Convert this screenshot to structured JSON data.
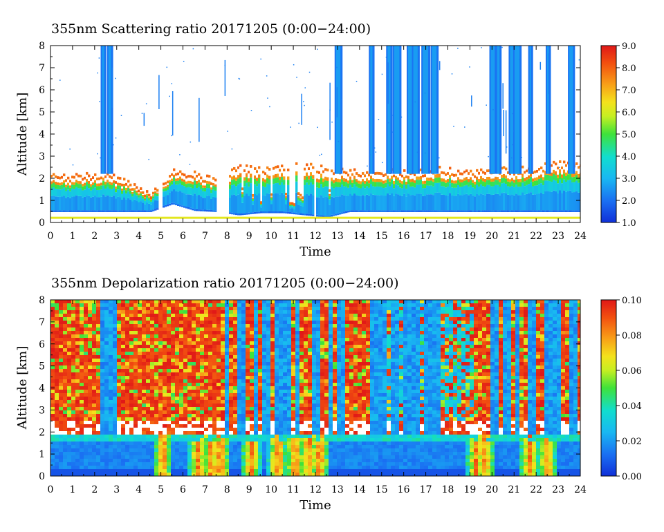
{
  "chart_data": [
    {
      "type": "heatmap",
      "title": "355nm Scattering ratio  20171205 (0:00−24:00)",
      "xlabel": "Time",
      "ylabel": "Altitude [km]",
      "xlim": [
        0,
        24
      ],
      "ylim": [
        0,
        8
      ],
      "x_ticks": [
        "0",
        "1",
        "2",
        "3",
        "4",
        "5",
        "6",
        "7",
        "8",
        "9",
        "10",
        "11",
        "12",
        "13",
        "14",
        "15",
        "16",
        "17",
        "18",
        "19",
        "20",
        "21",
        "22",
        "23",
        "24"
      ],
      "y_ticks": [
        "0",
        "1",
        "2",
        "3",
        "4",
        "5",
        "6",
        "7",
        "8"
      ],
      "colorbar": {
        "range": [
          1.0,
          9.0
        ],
        "ticks": [
          "1.0",
          "2.0",
          "3.0",
          "4.0",
          "5.0",
          "6.0",
          "7.0",
          "8.0",
          "9.0"
        ]
      },
      "features": {
        "cloud_top_km_hourly": [
          2.1,
          2.1,
          2.2,
          1.8,
          1.3,
          2.3,
          2.2,
          1.9,
          2.5,
          2.4,
          2.6,
          2.6,
          2.4,
          2.3,
          2.3,
          2.3,
          2.3,
          2.4,
          2.3,
          2.3,
          2.4,
          2.4,
          2.6,
          2.7
        ],
        "cloud_base_km_hourly": [
          0.55,
          0.55,
          0.55,
          0.55,
          0.55,
          0.9,
          0.6,
          0.55,
          0.4,
          0.5,
          0.5,
          0.4,
          0.3,
          0.55,
          0.55,
          0.55,
          0.55,
          0.55,
          0.55,
          0.55,
          0.55,
          0.55,
          0.55,
          0.55
        ],
        "cloud_columns_hours": [
          2.4,
          2.7,
          13.05,
          14.55,
          15.35,
          15.7,
          16.3,
          16.55,
          17.0,
          17.4,
          20.05,
          20.3,
          20.95,
          21.15,
          21.75,
          22.55,
          23.6
        ]
      }
    },
    {
      "type": "heatmap",
      "title": "355nm Depolarization ratio  20171205 (0:00−24:00)",
      "xlabel": "Time",
      "ylabel": "Altitude [km]",
      "xlim": [
        0,
        24
      ],
      "ylim": [
        0,
        8
      ],
      "x_ticks": [
        "0",
        "1",
        "2",
        "3",
        "4",
        "5",
        "6",
        "7",
        "8",
        "9",
        "10",
        "11",
        "12",
        "13",
        "14",
        "15",
        "16",
        "17",
        "18",
        "19",
        "20",
        "21",
        "22",
        "23",
        "24"
      ],
      "y_ticks": [
        "0",
        "1",
        "2",
        "3",
        "4",
        "5",
        "6",
        "7",
        "8"
      ],
      "colorbar": {
        "range": [
          0.0,
          0.1
        ],
        "ticks": [
          "0.00",
          "0.02",
          "0.04",
          "0.06",
          "0.08",
          "0.10"
        ]
      },
      "features": {
        "boundary_layer_top_km": 2.0,
        "noisy_region_above_km": 2.6,
        "cloud_columns_hours": [
          2.4,
          2.7,
          7.9,
          8.6,
          9.2,
          9.7,
          10.2,
          10.6,
          11.1,
          11.9,
          12.6,
          13.05,
          14.55,
          15.0,
          15.5,
          16.0,
          16.5,
          17.0,
          17.4,
          20.05,
          20.6,
          21.05,
          21.7,
          22.5,
          22.9,
          23.6
        ],
        "hotspots_hours": [
          5.0,
          6.6,
          7.2,
          7.6,
          9.0,
          10.2,
          11.0,
          11.6,
          12.1,
          19.2,
          19.6,
          21.6,
          22.4
        ]
      }
    }
  ]
}
